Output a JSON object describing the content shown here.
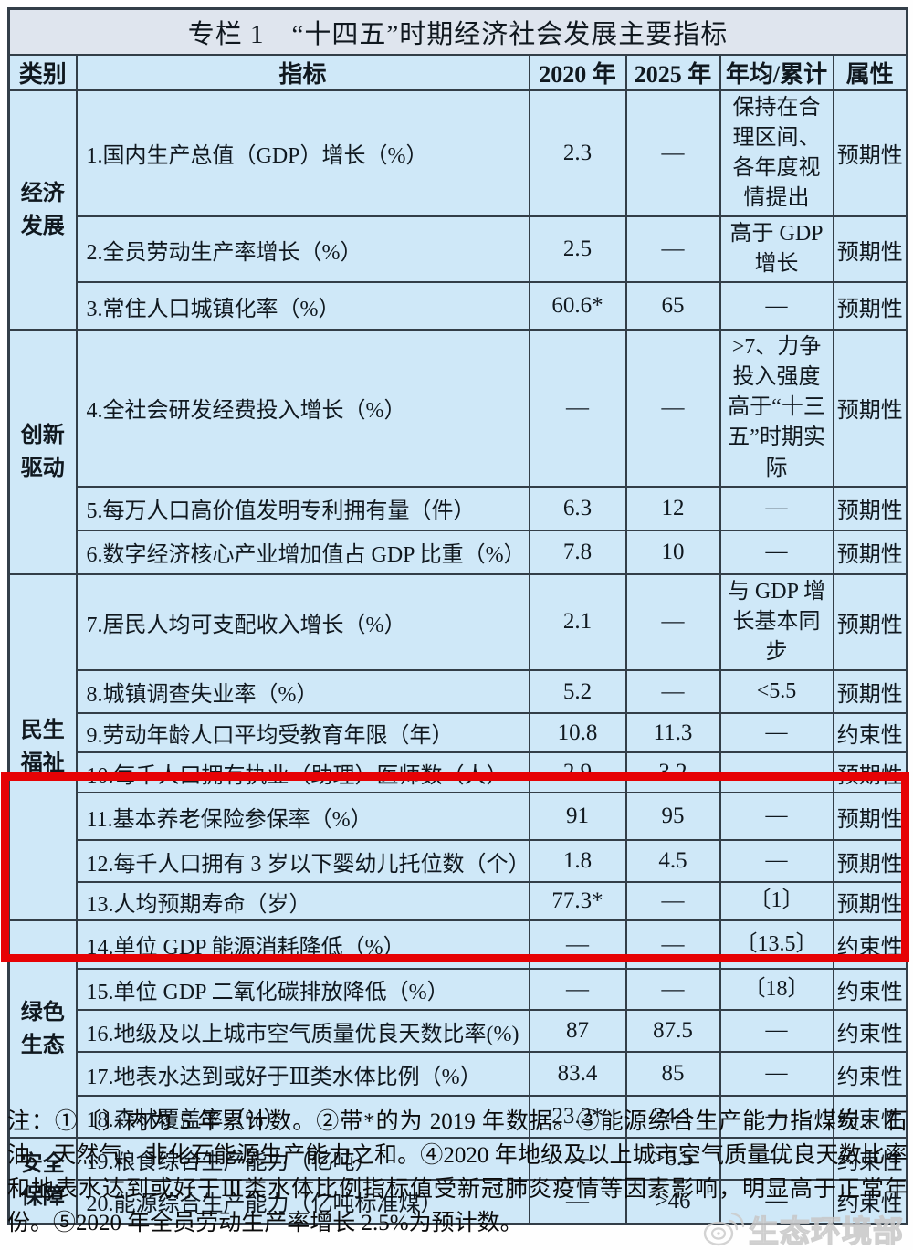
{
  "title": "专栏 1　“十四五”时期经济社会发展主要指标",
  "columns": [
    "类别",
    "指标",
    "2020 年",
    "2025 年",
    "年均/累计",
    "属性"
  ],
  "categories": [
    {
      "label": "经济发展",
      "span": 3
    },
    {
      "label": "创新驱动",
      "span": 3
    },
    {
      "label": "民生福祉",
      "span": 7
    },
    {
      "label": "绿色生态",
      "span": 5
    },
    {
      "label": "安全保障",
      "span": 2
    }
  ],
  "rows": [
    {
      "indicator": "1.国内生产总值（GDP）增长（%）",
      "y2020": "2.3",
      "y2025": "—",
      "annual": "保持在合理区间、各年度视情提出",
      "attr": "预期性"
    },
    {
      "indicator": "2.全员劳动生产率增长（%）",
      "y2020": "2.5",
      "y2025": "—",
      "annual": "高于 GDP 增长",
      "attr": "预期性"
    },
    {
      "indicator": "3.常住人口城镇化率（%）",
      "y2020": "60.6*",
      "y2025": "65",
      "annual": "—",
      "attr": "预期性"
    },
    {
      "indicator": "4.全社会研发经费投入增长（%）",
      "y2020": "—",
      "y2025": "—",
      "annual": ">7、力争投入强度高于“十三五”时期实际",
      "attr": "预期性"
    },
    {
      "indicator": "5.每万人口高价值发明专利拥有量（件）",
      "y2020": "6.3",
      "y2025": "12",
      "annual": "—",
      "attr": "预期性"
    },
    {
      "indicator": "6.数字经济核心产业增加值占 GDP 比重（%）",
      "y2020": "7.8",
      "y2025": "10",
      "annual": "—",
      "attr": "预期性"
    },
    {
      "indicator": "7.居民人均可支配收入增长（%）",
      "y2020": "2.1",
      "y2025": "—",
      "annual": "与 GDP 增长基本同步",
      "attr": "预期性"
    },
    {
      "indicator": "8.城镇调查失业率（%）",
      "y2020": "5.2",
      "y2025": "—",
      "annual": "<5.5",
      "attr": "预期性"
    },
    {
      "indicator": "9.劳动年龄人口平均受教育年限（年）",
      "y2020": "10.8",
      "y2025": "11.3",
      "annual": "—",
      "attr": "约束性"
    },
    {
      "indicator": "10.每千人口拥有执业（助理）医师数（人）",
      "y2020": "2.9",
      "y2025": "3.2",
      "annual": "—",
      "attr": "预期性"
    },
    {
      "indicator": "11.基本养老保险参保率（%）",
      "y2020": "91",
      "y2025": "95",
      "annual": "—",
      "attr": "预期性"
    },
    {
      "indicator": "12.每千人口拥有 3 岁以下婴幼儿托位数（个）",
      "y2020": "1.8",
      "y2025": "4.5",
      "annual": "—",
      "attr": "预期性"
    },
    {
      "indicator": "13.人均预期寿命（岁）",
      "y2020": "77.3*",
      "y2025": "—",
      "annual": "〔1〕",
      "attr": "预期性"
    },
    {
      "indicator": "14.单位 GDP 能源消耗降低（%）",
      "y2020": "—",
      "y2025": "—",
      "annual": "〔13.5〕",
      "attr": "约束性"
    },
    {
      "indicator": "15.单位 GDP 二氧化碳排放降低（%）",
      "y2020": "—",
      "y2025": "—",
      "annual": "〔18〕",
      "attr": "约束性"
    },
    {
      "indicator": "16.地级及以上城市空气质量优良天数比率(%)",
      "y2020": "87",
      "y2025": "87.5",
      "annual": "—",
      "attr": "约束性"
    },
    {
      "indicator": "17.地表水达到或好于Ⅲ类水体比例（%）",
      "y2020": "83.4",
      "y2025": "85",
      "annual": "—",
      "attr": "约束性"
    },
    {
      "indicator": "18.森林覆盖率（%）",
      "y2020": "23.2*",
      "y2025": "24.1",
      "annual": "—",
      "attr": "约束性"
    },
    {
      "indicator": "19.粮食综合生产能力（亿吨）",
      "y2020": "—",
      "y2025": ">6.5",
      "annual": "—",
      "attr": "约束性"
    },
    {
      "indicator": "20.能源综合生产能力（亿吨标准煤）",
      "y2020": "—",
      "y2025": ">46",
      "annual": "—",
      "attr": "约束性"
    }
  ],
  "note": "注：①〔〕内为 5 年累计数。②带*的为 2019 年数据。③能源综合生产能力指煤炭、石油、天然气、非化石能源生产能力之和。④2020 年地级及以上城市空气质量优良天数比率和地表水达到或好于Ⅲ类水体比例指标值受新冠肺炎疫情等因素影响，明显高于正常年份。⑤2020 年全员劳动生产率增长 2.5%为预计数。",
  "watermark": "生态环境部",
  "colors": {
    "highlight_red": "#e60205",
    "cell_blue": "#cfe8f8",
    "title_bar": "#dfe5ee",
    "border": "#333e48"
  }
}
